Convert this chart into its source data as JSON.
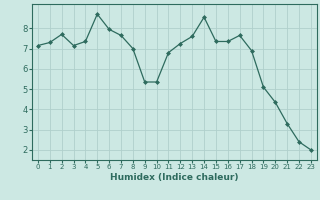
{
  "x": [
    0,
    1,
    2,
    3,
    4,
    5,
    6,
    7,
    8,
    9,
    10,
    11,
    12,
    13,
    14,
    15,
    16,
    17,
    18,
    19,
    20,
    21,
    22,
    23
  ],
  "y": [
    7.15,
    7.3,
    7.7,
    7.15,
    7.35,
    8.7,
    7.95,
    7.65,
    7.0,
    5.35,
    5.35,
    6.8,
    7.25,
    7.6,
    8.55,
    7.35,
    7.35,
    7.65,
    6.9,
    5.1,
    4.35,
    3.3,
    2.4,
    2.0
  ],
  "line_color": "#2e6b5e",
  "marker": "D",
  "marker_size": 2.0,
  "bg_color": "#cce8e3",
  "grid_color": "#b0d0cc",
  "xlabel": "Humidex (Indice chaleur)",
  "xlim": [
    -0.5,
    23.5
  ],
  "ylim": [
    1.5,
    9.2
  ],
  "yticks": [
    2,
    3,
    4,
    5,
    6,
    7,
    8
  ],
  "xticks": [
    0,
    1,
    2,
    3,
    4,
    5,
    6,
    7,
    8,
    9,
    10,
    11,
    12,
    13,
    14,
    15,
    16,
    17,
    18,
    19,
    20,
    21,
    22,
    23
  ],
  "tick_color": "#2e6b5e",
  "xlabel_fontsize": 6.5,
  "tick_fontsize_x": 5.0,
  "tick_fontsize_y": 6.0,
  "axis_label_color": "#2e6b5e",
  "spine_color": "#2e6b5e",
  "linewidth": 0.9
}
